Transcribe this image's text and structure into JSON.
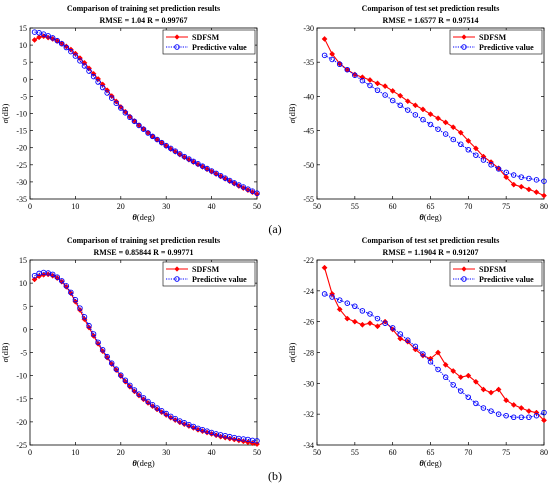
{
  "figure": {
    "label_a": "(a)",
    "label_b": "(b)"
  },
  "colors": {
    "sdfsm": "#ff0000",
    "pred": "#0000ff",
    "axis": "#000000"
  },
  "chart_data": [
    {
      "id": "a-train",
      "type": "line",
      "title": "Comparison of training set prediction results",
      "subtitle": "RMSE = 1.04   R = 0.99767",
      "xlabel": "θ(deg)",
      "ylabel": "σ(dB)",
      "xlim": [
        0,
        50
      ],
      "ylim": [
        -35,
        15
      ],
      "xticks": [
        0,
        10,
        20,
        30,
        40,
        50
      ],
      "yticks": [
        -35,
        -30,
        -25,
        -20,
        -15,
        -10,
        -5,
        0,
        5,
        10,
        15
      ],
      "legend_position": "top-right",
      "series": [
        {
          "name": "SDFSM",
          "marker": "diamond",
          "x": [
            1,
            2,
            3,
            4,
            5,
            6,
            7,
            8,
            9,
            10,
            11,
            12,
            13,
            14,
            15,
            16,
            17,
            18,
            19,
            20,
            21,
            22,
            23,
            24,
            25,
            26,
            27,
            28,
            29,
            30,
            31,
            32,
            33,
            34,
            35,
            36,
            37,
            38,
            39,
            40,
            41,
            42,
            43,
            44,
            45,
            46,
            47,
            48,
            49,
            50
          ],
          "values": [
            11.5,
            12.3,
            12.6,
            12.2,
            11.8,
            11.2,
            10.5,
            9.6,
            8.7,
            7.5,
            6.2,
            4.8,
            3.2,
            1.6,
            0.1,
            -1.5,
            -3.2,
            -4.9,
            -6.5,
            -8.1,
            -9.5,
            -10.9,
            -12.2,
            -13.4,
            -14.5,
            -15.6,
            -16.7,
            -17.7,
            -18.6,
            -19.5,
            -20.4,
            -21.2,
            -22.0,
            -22.8,
            -23.5,
            -24.2,
            -24.9,
            -25.6,
            -26.3,
            -27.0,
            -27.7,
            -28.4,
            -29.1,
            -29.8,
            -30.5,
            -31.2,
            -31.8,
            -32.4,
            -33.0,
            -33.6
          ]
        },
        {
          "name": "Predictive value",
          "marker": "circle",
          "x": [
            1,
            2,
            3,
            4,
            5,
            6,
            7,
            8,
            9,
            10,
            11,
            12,
            13,
            14,
            15,
            16,
            17,
            18,
            19,
            20,
            21,
            22,
            23,
            24,
            25,
            26,
            27,
            28,
            29,
            30,
            31,
            32,
            33,
            34,
            35,
            36,
            37,
            38,
            39,
            40,
            41,
            42,
            43,
            44,
            45,
            46,
            47,
            48,
            49,
            50
          ],
          "values": [
            13.8,
            13.6,
            13.2,
            12.7,
            12.1,
            11.3,
            10.4,
            9.3,
            8.1,
            6.8,
            5.4,
            3.9,
            2.4,
            0.8,
            -0.8,
            -2.4,
            -4.0,
            -5.5,
            -7.0,
            -8.4,
            -9.8,
            -11.1,
            -12.3,
            -13.5,
            -14.6,
            -15.7,
            -16.7,
            -17.6,
            -18.5,
            -19.4,
            -20.2,
            -21.0,
            -21.8,
            -22.6,
            -23.3,
            -24.0,
            -24.7,
            -25.4,
            -26.1,
            -26.8,
            -27.5,
            -28.2,
            -28.9,
            -29.6,
            -30.3,
            -30.9,
            -31.5,
            -32.1,
            -32.7,
            -33.3
          ]
        }
      ]
    },
    {
      "id": "a-test",
      "type": "line",
      "title": "Comparison of test set prediction results",
      "subtitle": "RMSE = 1.6577   R = 0.97514",
      "xlabel": "θ(deg)",
      "ylabel": "σ(dB)",
      "xlim": [
        50,
        80
      ],
      "ylim": [
        -55,
        -30
      ],
      "xticks": [
        50,
        55,
        60,
        65,
        70,
        75,
        80
      ],
      "yticks": [
        -55,
        -50,
        -45,
        -40,
        -35,
        -30
      ],
      "legend_position": "top-right",
      "series": [
        {
          "name": "SDFSM",
          "marker": "diamond",
          "x": [
            51,
            52,
            53,
            54,
            55,
            56,
            57,
            58,
            59,
            60,
            61,
            62,
            63,
            64,
            65,
            66,
            67,
            68,
            69,
            70,
            71,
            72,
            73,
            74,
            75,
            76,
            77,
            78,
            79,
            80
          ],
          "values": [
            -31.6,
            -33.8,
            -35.2,
            -36.1,
            -36.8,
            -37.2,
            -37.6,
            -38.1,
            -38.5,
            -39.2,
            -39.9,
            -40.7,
            -41.3,
            -41.9,
            -42.6,
            -43.2,
            -43.8,
            -44.5,
            -45.3,
            -46.5,
            -47.6,
            -48.8,
            -49.6,
            -50.5,
            -51.8,
            -52.9,
            -53.2,
            -53.6,
            -54.0,
            -54.5
          ]
        },
        {
          "name": "Predictive value",
          "marker": "circle",
          "x": [
            51,
            52,
            53,
            54,
            55,
            56,
            57,
            58,
            59,
            60,
            61,
            62,
            63,
            64,
            65,
            66,
            67,
            68,
            69,
            70,
            71,
            72,
            73,
            74,
            75,
            76,
            77,
            78,
            79,
            80
          ],
          "values": [
            -34.0,
            -34.6,
            -35.3,
            -36.1,
            -36.9,
            -37.7,
            -38.4,
            -39.1,
            -39.8,
            -40.6,
            -41.3,
            -42.0,
            -42.7,
            -43.4,
            -44.1,
            -44.8,
            -45.5,
            -46.3,
            -47.0,
            -47.8,
            -48.6,
            -49.3,
            -50.0,
            -50.6,
            -51.1,
            -51.5,
            -51.8,
            -52.0,
            -52.2,
            -52.4
          ]
        }
      ]
    },
    {
      "id": "b-train",
      "type": "line",
      "title": "Comparison of training set prediction results",
      "subtitle": "RMSE = 0.85844   R = 0.99771",
      "xlabel": "θ(deg)",
      "ylabel": "σ(dB)",
      "xlim": [
        0,
        50
      ],
      "ylim": [
        -25,
        15
      ],
      "xticks": [
        0,
        10,
        20,
        30,
        40,
        50
      ],
      "yticks": [
        -25,
        -20,
        -15,
        -10,
        -5,
        0,
        5,
        10,
        15
      ],
      "legend_position": "top-right",
      "series": [
        {
          "name": "SDFSM",
          "marker": "diamond",
          "x": [
            1,
            2,
            3,
            4,
            5,
            6,
            7,
            8,
            9,
            10,
            11,
            12,
            13,
            14,
            15,
            16,
            17,
            18,
            19,
            20,
            21,
            22,
            23,
            24,
            25,
            26,
            27,
            28,
            29,
            30,
            31,
            32,
            33,
            34,
            35,
            36,
            37,
            38,
            39,
            40,
            41,
            42,
            43,
            44,
            45,
            46,
            47,
            48,
            49,
            50
          ],
          "values": [
            10.8,
            11.5,
            11.8,
            11.9,
            11.6,
            11.1,
            10.3,
            9.2,
            7.8,
            6.0,
            4.2,
            2.2,
            0.4,
            -1.4,
            -3.1,
            -4.7,
            -6.1,
            -7.5,
            -8.8,
            -10.1,
            -11.3,
            -12.4,
            -13.4,
            -14.3,
            -15.1,
            -15.9,
            -16.6,
            -17.3,
            -17.9,
            -18.5,
            -19.1,
            -19.6,
            -20.1,
            -20.5,
            -20.9,
            -21.3,
            -21.7,
            -22.0,
            -22.3,
            -22.6,
            -22.9,
            -23.2,
            -23.4,
            -23.6,
            -23.8,
            -24.0,
            -24.2,
            -24.4,
            -24.6,
            -24.8
          ]
        },
        {
          "name": "Predictive value",
          "marker": "circle",
          "x": [
            1,
            2,
            3,
            4,
            5,
            6,
            7,
            8,
            9,
            10,
            11,
            12,
            13,
            14,
            15,
            16,
            17,
            18,
            19,
            20,
            21,
            22,
            23,
            24,
            25,
            26,
            27,
            28,
            29,
            30,
            31,
            32,
            33,
            34,
            35,
            36,
            37,
            38,
            39,
            40,
            41,
            42,
            43,
            44,
            45,
            46,
            47,
            48,
            49,
            50
          ],
          "values": [
            11.6,
            12.1,
            12.3,
            12.2,
            11.9,
            11.3,
            10.5,
            9.4,
            8.0,
            6.4,
            4.6,
            2.7,
            0.8,
            -1.0,
            -2.8,
            -4.4,
            -5.9,
            -7.3,
            -8.6,
            -9.9,
            -11.0,
            -12.1,
            -13.1,
            -14.0,
            -14.8,
            -15.6,
            -16.3,
            -17.0,
            -17.6,
            -18.2,
            -18.8,
            -19.3,
            -19.8,
            -20.2,
            -20.6,
            -21.0,
            -21.4,
            -21.7,
            -22.0,
            -22.3,
            -22.6,
            -22.8,
            -23.0,
            -23.2,
            -23.4,
            -23.6,
            -23.7,
            -23.8,
            -24.0,
            -24.1
          ]
        }
      ]
    },
    {
      "id": "b-test",
      "type": "line",
      "title": "Comparison of test set prediction results",
      "subtitle": "RMSE = 1.1904   R = 0.91207",
      "xlabel": "θ(deg)",
      "ylabel": "σ(dB)",
      "xlim": [
        50,
        80
      ],
      "ylim": [
        -34,
        -22
      ],
      "xticks": [
        50,
        55,
        60,
        65,
        70,
        75,
        80
      ],
      "yticks": [
        -34,
        -32,
        -30,
        -28,
        -26,
        -24,
        -22
      ],
      "legend_position": "top-right",
      "series": [
        {
          "name": "SDFSM",
          "marker": "diamond",
          "x": [
            51,
            52,
            53,
            54,
            55,
            56,
            57,
            58,
            59,
            60,
            61,
            62,
            63,
            64,
            65,
            66,
            67,
            68,
            69,
            70,
            71,
            72,
            73,
            74,
            75,
            76,
            77,
            78,
            79,
            80
          ],
          "values": [
            -22.5,
            -24.2,
            -25.2,
            -25.8,
            -26.0,
            -26.2,
            -26.1,
            -26.3,
            -26.0,
            -26.5,
            -27.1,
            -27.3,
            -27.8,
            -28.2,
            -28.4,
            -28.0,
            -28.8,
            -29.2,
            -29.6,
            -29.5,
            -29.9,
            -30.4,
            -30.6,
            -30.4,
            -31.1,
            -31.4,
            -31.6,
            -31.8,
            -31.9,
            -32.4
          ]
        },
        {
          "name": "Predictive value",
          "marker": "circle",
          "x": [
            51,
            52,
            53,
            54,
            55,
            56,
            57,
            58,
            59,
            60,
            61,
            62,
            63,
            64,
            65,
            66,
            67,
            68,
            69,
            70,
            71,
            72,
            73,
            74,
            75,
            76,
            77,
            78,
            79,
            80
          ],
          "values": [
            -24.2,
            -24.4,
            -24.6,
            -24.8,
            -25.0,
            -25.3,
            -25.5,
            -25.8,
            -26.1,
            -26.4,
            -26.8,
            -27.2,
            -27.6,
            -28.1,
            -28.6,
            -29.1,
            -29.6,
            -30.1,
            -30.5,
            -30.9,
            -31.3,
            -31.6,
            -31.8,
            -32.0,
            -32.1,
            -32.2,
            -32.2,
            -32.2,
            -32.1,
            -31.9
          ]
        }
      ]
    }
  ]
}
